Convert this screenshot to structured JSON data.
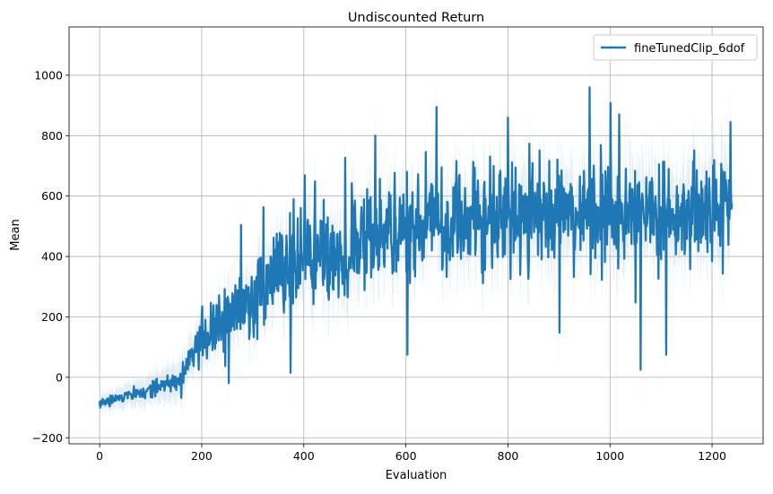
{
  "chart_data": {
    "type": "line",
    "title": "Undiscounted Return",
    "xlabel": "Evaluation",
    "ylabel": "Mean",
    "xlim": [
      -60,
      1300
    ],
    "ylim": [
      -220,
      1160
    ],
    "xticks": [
      0,
      200,
      400,
      600,
      800,
      1000,
      1200
    ],
    "yticks": [
      -200,
      0,
      200,
      400,
      600,
      800,
      1000
    ],
    "grid": true,
    "legend_position": "top-right",
    "series": [
      {
        "name": "fineTunedClip_6dof",
        "color": "#1f77b4",
        "band_color": "#aecde6",
        "n_points": 1240,
        "trend": [
          [
            0,
            -85
          ],
          [
            50,
            -65
          ],
          [
            100,
            -40
          ],
          [
            150,
            -10
          ],
          [
            200,
            130
          ],
          [
            250,
            210
          ],
          [
            300,
            270
          ],
          [
            350,
            330
          ],
          [
            400,
            380
          ],
          [
            450,
            410
          ],
          [
            500,
            440
          ],
          [
            550,
            470
          ],
          [
            600,
            490
          ],
          [
            700,
            520
          ],
          [
            800,
            540
          ],
          [
            900,
            540
          ],
          [
            1000,
            545
          ],
          [
            1100,
            540
          ],
          [
            1240,
            560
          ]
        ],
        "noise_amplitude": [
          [
            0,
            12
          ],
          [
            150,
            30
          ],
          [
            200,
            70
          ],
          [
            300,
            110
          ],
          [
            400,
            140
          ],
          [
            600,
            150
          ],
          [
            1240,
            150
          ]
        ],
        "band_halfwidth": [
          [
            0,
            25
          ],
          [
            200,
            70
          ],
          [
            400,
            110
          ],
          [
            1240,
            140
          ]
        ],
        "peaks": [
          [
            1,
            -100
          ],
          [
            120,
            -30
          ],
          [
            540,
            800
          ],
          [
            603,
            75
          ],
          [
            660,
            895
          ],
          [
            800,
            860
          ],
          [
            960,
            960
          ],
          [
            1060,
            25
          ],
          [
            1110,
            75
          ],
          [
            1236,
            845
          ]
        ]
      }
    ]
  }
}
